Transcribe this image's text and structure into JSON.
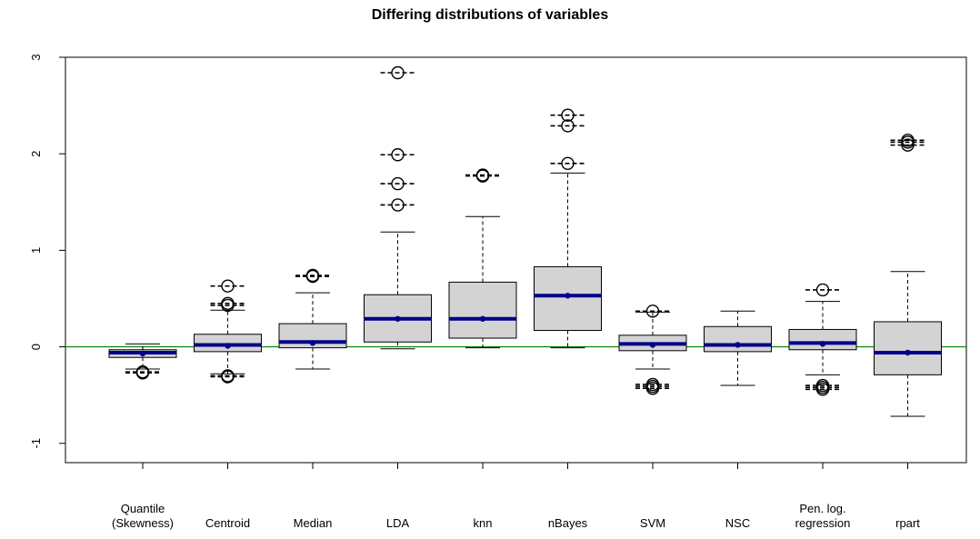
{
  "chart_data": {
    "type": "boxplot",
    "title": "Differing distributions of variables",
    "xlabel": "",
    "ylabel": "",
    "ylim": [
      -1.2,
      3.0
    ],
    "y_ticks": [
      "-1",
      "0",
      "1",
      "2",
      "3"
    ],
    "reference_line": {
      "y": 0,
      "color": "#008000"
    },
    "colors": {
      "box_fill": "#d3d3d3",
      "median": "#00008b",
      "mean_point": "#00008b",
      "outline": "#000000"
    },
    "categories": [
      [
        "Quantile",
        "(Skewness)"
      ],
      [
        "Centroid"
      ],
      [
        "Median"
      ],
      [
        "LDA"
      ],
      [
        "knn"
      ],
      [
        "nBayes"
      ],
      [
        "SVM"
      ],
      [
        "NSC"
      ],
      [
        "Pen. log.",
        "regression"
      ],
      [
        "rpart"
      ]
    ],
    "boxes": [
      {
        "lower_whisker": -0.23,
        "q1": -0.11,
        "median": -0.06,
        "q3": -0.03,
        "upper_whisker": 0.03,
        "mean": -0.07,
        "outliers": [
          -0.26,
          -0.27
        ]
      },
      {
        "lower_whisker": -0.28,
        "q1": -0.05,
        "median": 0.02,
        "q3": 0.13,
        "upper_whisker": 0.38,
        "mean": 0.01,
        "outliers": [
          0.63,
          0.45,
          0.43,
          -0.3,
          -0.31
        ]
      },
      {
        "lower_whisker": -0.23,
        "q1": -0.01,
        "median": 0.05,
        "q3": 0.24,
        "upper_whisker": 0.56,
        "mean": 0.04,
        "outliers": [
          0.74,
          0.73
        ]
      },
      {
        "lower_whisker": -0.02,
        "q1": 0.05,
        "median": 0.29,
        "q3": 0.54,
        "upper_whisker": 1.19,
        "mean": 0.29,
        "outliers": [
          2.84,
          1.99,
          1.69,
          1.47
        ]
      },
      {
        "lower_whisker": -0.01,
        "q1": 0.09,
        "median": 0.29,
        "q3": 0.67,
        "upper_whisker": 1.35,
        "mean": 0.29,
        "outliers": [
          1.78,
          1.77
        ]
      },
      {
        "lower_whisker": -0.01,
        "q1": 0.17,
        "median": 0.53,
        "q3": 0.83,
        "upper_whisker": 1.8,
        "mean": 0.53,
        "outliers": [
          2.4,
          2.29,
          1.9
        ]
      },
      {
        "lower_whisker": -0.23,
        "q1": -0.04,
        "median": 0.03,
        "q3": 0.12,
        "upper_whisker": 0.36,
        "mean": 0.02,
        "outliers": [
          0.37,
          -0.39,
          -0.41,
          -0.43
        ]
      },
      {
        "lower_whisker": -0.4,
        "q1": -0.05,
        "median": 0.02,
        "q3": 0.21,
        "upper_whisker": 0.37,
        "mean": 0.02,
        "outliers": []
      },
      {
        "lower_whisker": -0.29,
        "q1": -0.03,
        "median": 0.04,
        "q3": 0.18,
        "upper_whisker": 0.47,
        "mean": 0.03,
        "outliers": [
          0.59,
          -0.4,
          -0.42,
          -0.44
        ]
      },
      {
        "lower_whisker": -0.72,
        "q1": -0.29,
        "median": -0.06,
        "q3": 0.26,
        "upper_whisker": 0.78,
        "mean": -0.06,
        "outliers": [
          2.14,
          2.12,
          2.09
        ]
      }
    ]
  }
}
